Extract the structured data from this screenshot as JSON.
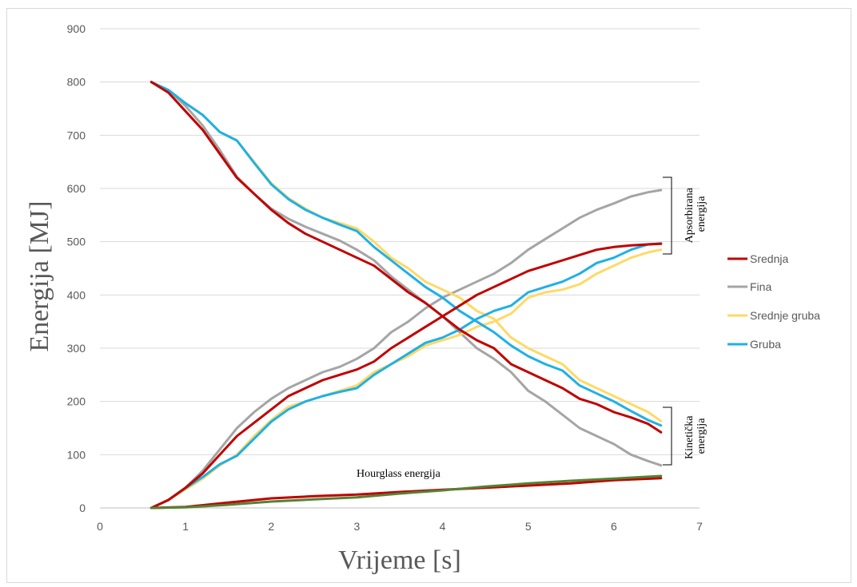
{
  "chart_data": {
    "type": "line",
    "title": "",
    "xlabel": "Vrijeme [s]",
    "ylabel": "Energija [MJ]",
    "xlim": [
      0,
      7
    ],
    "ylim": [
      0,
      900
    ],
    "xticks": [
      0,
      1,
      2,
      3,
      4,
      5,
      6,
      7
    ],
    "yticks": [
      0,
      100,
      200,
      300,
      400,
      500,
      600,
      700,
      800,
      900
    ],
    "grid": "horizontal",
    "legend_position": "right",
    "legend": [
      "Srednja",
      "Fina",
      "Srednje gruba",
      "Gruba"
    ],
    "colors": {
      "Srednja": "#c00000",
      "Fina": "#a5a5a5",
      "Srednje gruba": "#ffd966",
      "Gruba": "#1fb0e6",
      "Hourglass": "#548235"
    },
    "annotations": {
      "absorbed": "Apsorbirana energija",
      "kinetic": "Kinetička energija",
      "hourglass": "Hourglass energija"
    },
    "series": [
      {
        "name": "Srednja",
        "group": "kineticka",
        "x": [
          0.6,
          0.8,
          1.0,
          1.2,
          1.4,
          1.6,
          1.8,
          2.0,
          2.2,
          2.4,
          2.6,
          2.8,
          3.0,
          3.2,
          3.4,
          3.6,
          3.8,
          4.0,
          4.2,
          4.4,
          4.6,
          4.8,
          5.0,
          5.2,
          5.4,
          5.6,
          5.8,
          6.0,
          6.2,
          6.4,
          6.55
        ],
        "y": [
          800,
          780,
          745,
          710,
          665,
          620,
          590,
          560,
          535,
          515,
          500,
          485,
          470,
          455,
          430,
          405,
          385,
          360,
          335,
          315,
          300,
          270,
          255,
          240,
          225,
          205,
          195,
          180,
          170,
          158,
          142
        ]
      },
      {
        "name": "Fina",
        "group": "kineticka",
        "x": [
          0.6,
          0.8,
          1.0,
          1.2,
          1.4,
          1.6,
          1.8,
          2.0,
          2.2,
          2.4,
          2.6,
          2.8,
          3.0,
          3.2,
          3.4,
          3.6,
          3.8,
          4.0,
          4.2,
          4.4,
          4.6,
          4.8,
          5.0,
          5.2,
          5.4,
          5.6,
          5.8,
          6.0,
          6.2,
          6.4,
          6.55
        ],
        "y": [
          800,
          785,
          755,
          718,
          672,
          622,
          590,
          562,
          543,
          528,
          515,
          502,
          485,
          465,
          435,
          410,
          385,
          360,
          330,
          300,
          280,
          255,
          220,
          200,
          175,
          150,
          135,
          120,
          100,
          88,
          80
        ]
      },
      {
        "name": "Srednje gruba",
        "group": "kineticka",
        "x": [
          0.6,
          0.8,
          1.0,
          1.2,
          1.4,
          1.6,
          1.8,
          2.0,
          2.2,
          2.4,
          2.6,
          2.8,
          3.0,
          3.2,
          3.4,
          3.6,
          3.8,
          4.0,
          4.2,
          4.4,
          4.6,
          4.8,
          5.0,
          5.2,
          5.4,
          5.6,
          5.8,
          6.0,
          6.2,
          6.4,
          6.55
        ],
        "y": [
          800,
          785,
          760,
          738,
          706,
          690,
          650,
          610,
          582,
          562,
          545,
          535,
          525,
          500,
          470,
          450,
          425,
          410,
          395,
          370,
          355,
          320,
          300,
          285,
          270,
          240,
          225,
          210,
          195,
          180,
          163
        ]
      },
      {
        "name": "Gruba",
        "group": "kineticka",
        "x": [
          0.6,
          0.8,
          1.0,
          1.2,
          1.4,
          1.6,
          1.8,
          2.0,
          2.2,
          2.4,
          2.6,
          2.8,
          3.0,
          3.2,
          3.4,
          3.6,
          3.8,
          4.0,
          4.2,
          4.4,
          4.6,
          4.8,
          5.0,
          5.2,
          5.4,
          5.6,
          5.8,
          6.0,
          6.2,
          6.4,
          6.55
        ],
        "y": [
          800,
          785,
          760,
          738,
          706,
          690,
          648,
          608,
          580,
          560,
          545,
          532,
          520,
          490,
          465,
          440,
          415,
          395,
          370,
          350,
          330,
          305,
          285,
          270,
          258,
          230,
          215,
          200,
          182,
          165,
          155
        ]
      },
      {
        "name": "Srednja",
        "group": "apsorbirana",
        "x": [
          0.6,
          0.8,
          1.0,
          1.2,
          1.4,
          1.6,
          1.8,
          2.0,
          2.2,
          2.4,
          2.6,
          2.8,
          3.0,
          3.2,
          3.4,
          3.6,
          3.8,
          4.0,
          4.2,
          4.4,
          4.6,
          4.8,
          5.0,
          5.2,
          5.4,
          5.6,
          5.8,
          6.0,
          6.2,
          6.4,
          6.55
        ],
        "y": [
          0,
          15,
          38,
          65,
          100,
          135,
          160,
          185,
          210,
          225,
          240,
          250,
          260,
          275,
          300,
          320,
          340,
          360,
          380,
          400,
          415,
          430,
          445,
          455,
          465,
          475,
          485,
          490,
          493,
          495,
          496
        ]
      },
      {
        "name": "Fina",
        "group": "apsorbirana",
        "x": [
          0.6,
          0.8,
          1.0,
          1.2,
          1.4,
          1.6,
          1.8,
          2.0,
          2.2,
          2.4,
          2.6,
          2.8,
          3.0,
          3.2,
          3.4,
          3.6,
          3.8,
          4.0,
          4.2,
          4.4,
          4.6,
          4.8,
          5.0,
          5.2,
          5.4,
          5.6,
          5.8,
          6.0,
          6.2,
          6.4,
          6.55
        ],
        "y": [
          0,
          15,
          38,
          70,
          110,
          150,
          180,
          205,
          225,
          240,
          255,
          265,
          280,
          300,
          330,
          350,
          375,
          395,
          410,
          425,
          440,
          460,
          485,
          505,
          525,
          545,
          560,
          572,
          585,
          593,
          597
        ]
      },
      {
        "name": "Srednje gruba",
        "group": "apsorbirana",
        "x": [
          0.6,
          0.8,
          1.0,
          1.2,
          1.4,
          1.6,
          1.8,
          2.0,
          2.2,
          2.4,
          2.6,
          2.8,
          3.0,
          3.2,
          3.4,
          3.6,
          3.8,
          4.0,
          4.2,
          4.4,
          4.6,
          4.8,
          5.0,
          5.2,
          5.4,
          5.6,
          5.8,
          6.0,
          6.2,
          6.4,
          6.55
        ],
        "y": [
          0,
          15,
          35,
          55,
          80,
          100,
          135,
          165,
          190,
          200,
          210,
          220,
          230,
          255,
          270,
          285,
          305,
          315,
          325,
          340,
          350,
          365,
          395,
          405,
          410,
          420,
          440,
          455,
          470,
          480,
          485
        ]
      },
      {
        "name": "Gruba",
        "group": "apsorbirana",
        "x": [
          0.6,
          0.8,
          1.0,
          1.2,
          1.4,
          1.6,
          1.8,
          2.0,
          2.2,
          2.4,
          2.6,
          2.8,
          3.0,
          3.2,
          3.4,
          3.6,
          3.8,
          4.0,
          4.2,
          4.4,
          4.6,
          4.8,
          5.0,
          5.2,
          5.4,
          5.6,
          5.8,
          6.0,
          6.2,
          6.4,
          6.55
        ],
        "y": [
          0,
          15,
          37,
          58,
          82,
          98,
          130,
          162,
          185,
          200,
          210,
          218,
          225,
          250,
          270,
          290,
          310,
          320,
          335,
          355,
          370,
          380,
          405,
          415,
          425,
          440,
          460,
          470,
          485,
          495,
          497
        ]
      },
      {
        "name": "Srednja",
        "group": "hourglass",
        "x": [
          0.6,
          1.0,
          1.5,
          2.0,
          2.5,
          3.0,
          3.5,
          4.0,
          4.5,
          5.0,
          5.5,
          6.0,
          6.55
        ],
        "y": [
          0,
          2,
          10,
          18,
          22,
          25,
          30,
          34,
          38,
          42,
          46,
          52,
          56
        ]
      },
      {
        "name": "Hourglass",
        "group": "hourglass",
        "x": [
          0.6,
          1.0,
          1.5,
          2.0,
          2.5,
          3.0,
          3.5,
          4.0,
          4.5,
          5.0,
          5.5,
          6.0,
          6.55
        ],
        "y": [
          0,
          1,
          6,
          12,
          16,
          20,
          27,
          33,
          40,
          46,
          51,
          55,
          60
        ]
      }
    ]
  }
}
